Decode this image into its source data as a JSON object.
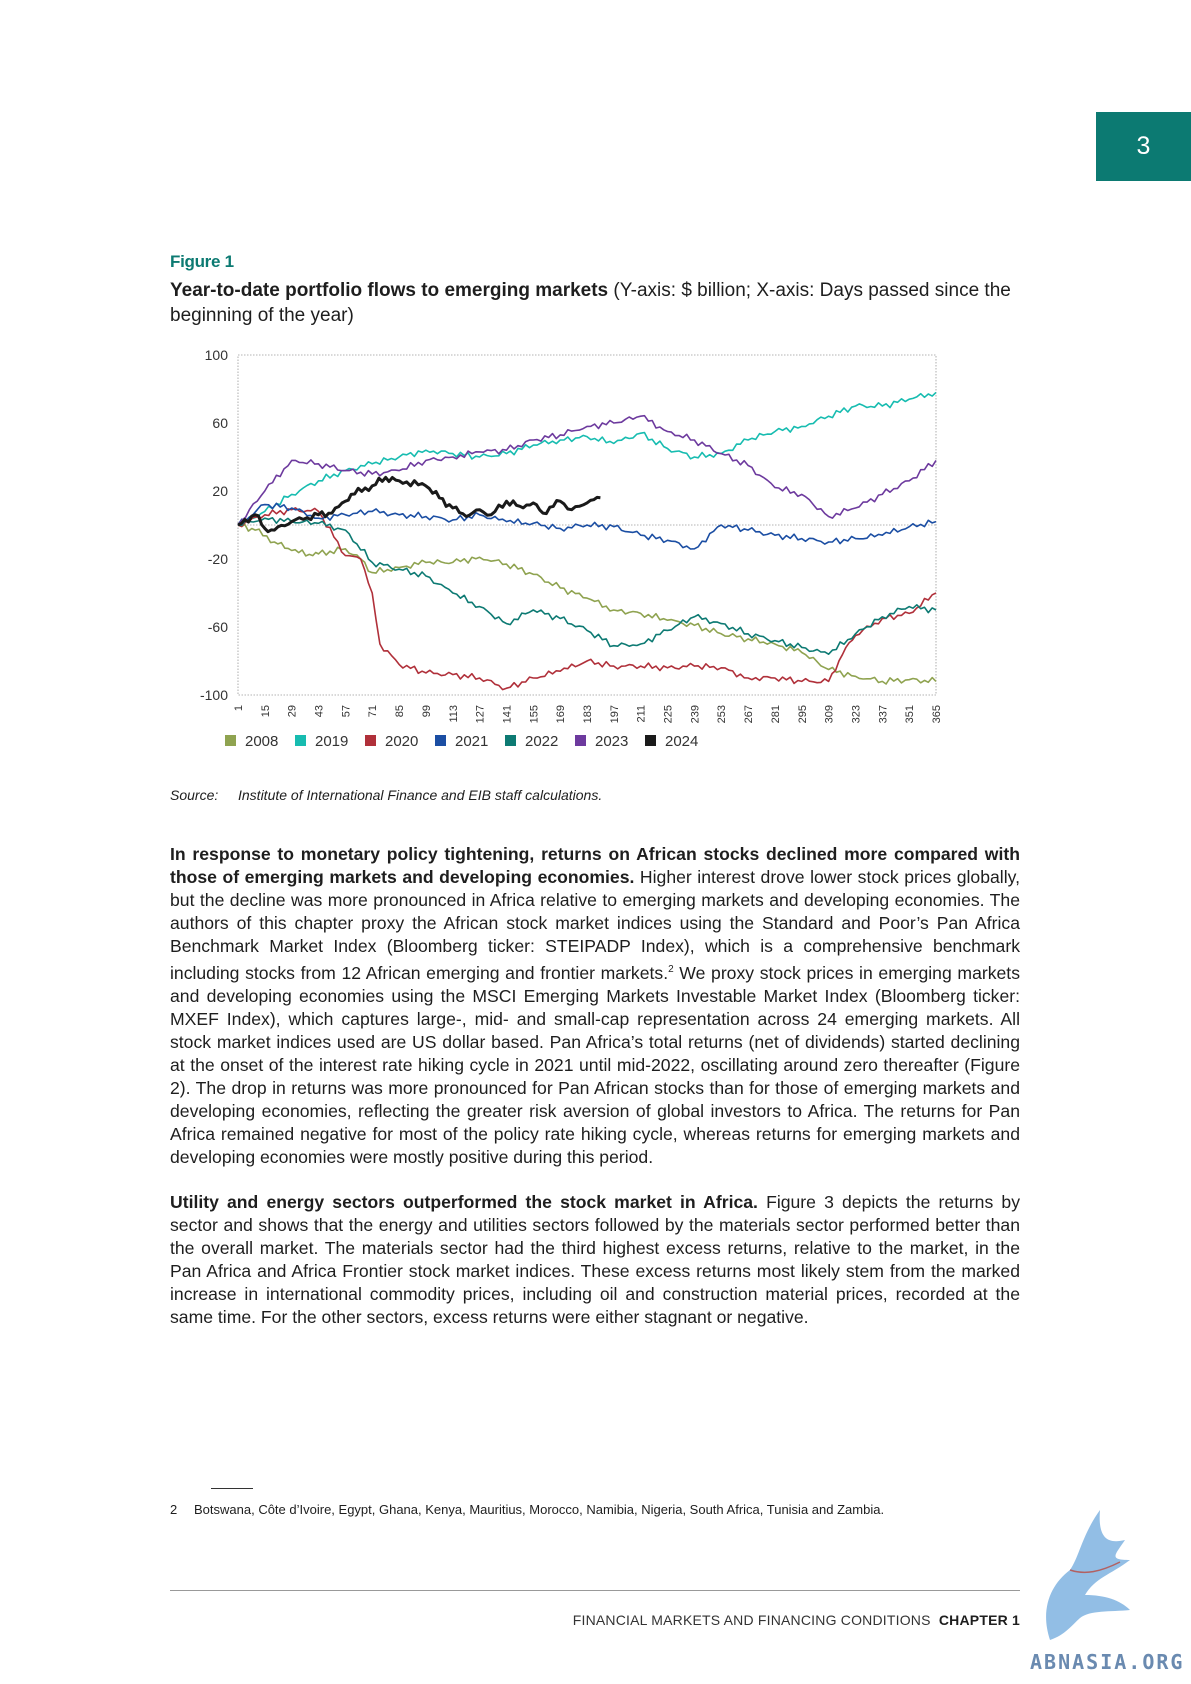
{
  "chapter_tab": "3",
  "figure": {
    "label": "Figure 1",
    "title_bold": "Year-to-date portfolio flows to emerging markets",
    "title_rest": " (Y-axis: $ billion; X-axis: Days passed since the beginning of the year)"
  },
  "source": {
    "label": "Source:",
    "text": "Institute of International Finance and EIB staff calculations."
  },
  "chart_data": {
    "type": "line",
    "title": "",
    "xlabel": "",
    "ylabel": "",
    "x_ticks": [
      1,
      15,
      29,
      43,
      57,
      71,
      85,
      99,
      113,
      127,
      141,
      155,
      169,
      183,
      197,
      211,
      225,
      239,
      253,
      267,
      281,
      295,
      309,
      323,
      337,
      351,
      365
    ],
    "y_ticks": [
      100,
      60,
      20,
      -20,
      -60,
      -100
    ],
    "xlim": [
      1,
      365
    ],
    "ylim": [
      -100,
      100
    ],
    "grid": false,
    "legend_position": "bottom",
    "series": [
      {
        "name": "2008",
        "color": "#8fa350",
        "x": [
          1,
          10,
          20,
          29,
          40,
          43,
          57,
          65,
          71,
          85,
          99,
          113,
          127,
          141,
          155,
          169,
          183,
          197,
          211,
          225,
          239,
          253,
          267,
          281,
          295,
          309,
          323,
          337,
          351,
          365
        ],
        "y": [
          0,
          -3,
          -10,
          -15,
          -18,
          -17,
          -14,
          -20,
          -28,
          -25,
          -22,
          -22,
          -19,
          -23,
          -29,
          -37,
          -43,
          -50,
          -52,
          -56,
          -59,
          -64,
          -67,
          -70,
          -75,
          -85,
          -89,
          -92,
          -91,
          -92
        ]
      },
      {
        "name": "2019",
        "color": "#17bcb0",
        "x": [
          1,
          15,
          29,
          43,
          57,
          71,
          85,
          99,
          113,
          127,
          141,
          155,
          169,
          183,
          197,
          211,
          225,
          239,
          253,
          267,
          281,
          295,
          309,
          323,
          337,
          351,
          365
        ],
        "y": [
          0,
          8,
          18,
          26,
          32,
          36,
          40,
          44,
          42,
          40,
          42,
          47,
          50,
          52,
          48,
          54,
          45,
          40,
          42,
          50,
          55,
          58,
          64,
          70,
          70,
          74,
          78
        ]
      },
      {
        "name": "2020",
        "color": "#b0303a",
        "x": [
          1,
          15,
          29,
          43,
          57,
          65,
          71,
          75,
          85,
          99,
          113,
          127,
          141,
          155,
          169,
          183,
          197,
          211,
          225,
          239,
          253,
          267,
          281,
          295,
          309,
          318,
          323,
          337,
          351,
          365
        ],
        "y": [
          0,
          6,
          9,
          8,
          -18,
          -20,
          -40,
          -70,
          -82,
          -87,
          -88,
          -90,
          -96,
          -90,
          -86,
          -80,
          -83,
          -83,
          -84,
          -83,
          -84,
          -90,
          -90,
          -92,
          -92,
          -72,
          -65,
          -55,
          -52,
          -40
        ]
      },
      {
        "name": "2021",
        "color": "#1b4ea3",
        "x": [
          1,
          15,
          29,
          43,
          57,
          71,
          85,
          99,
          113,
          127,
          141,
          155,
          169,
          183,
          197,
          211,
          225,
          239,
          253,
          267,
          281,
          295,
          309,
          323,
          337,
          351,
          365
        ],
        "y": [
          0,
          12,
          10,
          4,
          6,
          8,
          6,
          5,
          3,
          6,
          2,
          1,
          -2,
          0,
          -1,
          -6,
          -9,
          -14,
          0,
          -3,
          -6,
          -8,
          -10,
          -8,
          -6,
          -1,
          2
        ]
      },
      {
        "name": "2022",
        "color": "#0d7a73",
        "x": [
          1,
          15,
          29,
          43,
          57,
          71,
          85,
          99,
          113,
          127,
          141,
          155,
          169,
          183,
          197,
          211,
          225,
          239,
          253,
          267,
          281,
          295,
          309,
          323,
          337,
          351,
          365
        ],
        "y": [
          0,
          4,
          2,
          1,
          -3,
          -22,
          -26,
          -30,
          -40,
          -48,
          -58,
          -50,
          -55,
          -62,
          -71,
          -70,
          -62,
          -54,
          -58,
          -64,
          -68,
          -72,
          -76,
          -64,
          -54,
          -48,
          -50
        ]
      },
      {
        "name": "2023",
        "color": "#6d3a9e",
        "x": [
          1,
          15,
          29,
          43,
          57,
          71,
          85,
          99,
          113,
          127,
          141,
          155,
          169,
          183,
          197,
          211,
          225,
          239,
          253,
          267,
          281,
          295,
          309,
          323,
          337,
          351,
          365
        ],
        "y": [
          0,
          20,
          38,
          36,
          32,
          30,
          32,
          38,
          40,
          43,
          44,
          50,
          53,
          58,
          60,
          64,
          55,
          50,
          42,
          35,
          22,
          18,
          5,
          10,
          18,
          26,
          38
        ]
      },
      {
        "name": "2024",
        "color": "#1a1a1a",
        "x": [
          1,
          10,
          15,
          20,
          29,
          43,
          50,
          57,
          60,
          71,
          78,
          85,
          99,
          106,
          113,
          120,
          127,
          133,
          141,
          148,
          155,
          160,
          169,
          175,
          183,
          190
        ],
        "y": [
          0,
          6,
          -2,
          -3,
          2,
          6,
          7,
          14,
          18,
          23,
          28,
          26,
          23,
          16,
          10,
          5,
          9,
          6,
          14,
          11,
          13,
          7,
          14,
          9,
          13,
          16
        ]
      }
    ]
  },
  "body": {
    "p1_bold": "In response to monetary policy tightening, returns on African stocks declined more compared with those of emerging markets and developing economies.",
    "p1_text_a": " Higher interest drove lower stock prices globally, but the decline was more pronounced in Africa relative to emerging markets and developing economies. The authors of this chapter proxy the African stock market indices using the Standard and Poor’s Pan Africa Benchmark Market Index (Bloomberg ticker: STEIPADP Index), which is a comprehensive benchmark including stocks from 12 African emerging and frontier markets.",
    "p1_sup": "2",
    "p1_text_b": " We proxy stock prices in emerging markets and developing economies using the MSCI Emerging Markets Investable Market Index (Bloomberg ticker: MXEF Index), which captures large-, mid- and small-cap representation across 24 emerging markets. All stock market indices used are US dollar based. Pan Africa’s total returns (net of dividends) started declining at the onset of the interest rate hiking cycle in 2021 until mid-2022, oscillating around zero thereafter (Figure 2). The drop in returns was more pronounced for Pan African stocks than for those of emerging markets and developing economies, reflecting the greater risk aversion of global investors to Africa. The returns for Pan Africa remained negative for most of the policy rate hiking cycle, whereas returns for emerging markets and developing economies were mostly positive during this period.",
    "p2_bold": "Utility and energy sectors outperformed the stock market in Africa.",
    "p2_text": " Figure 3 depicts the returns by sector and shows that the energy and utilities sectors followed by the materials sector performed better than the overall market. The materials sector had the third highest excess returns, relative to the market, in the Pan Africa and Africa Frontier stock market indices. These excess returns most likely stem from the marked increase in international commodity prices, including oil and construction material prices, recorded at the same time. For the other sectors, excess returns were either stagnant or negative."
  },
  "footnote": {
    "number": "2",
    "text": "Botswana, Côte d’Ivoire, Egypt, Ghana, Kenya, Mauritius, Morocco, Namibia, Nigeria, South Africa, Tunisia and Zambia."
  },
  "footer": {
    "section": "FINANCIAL MARKETS AND FINANCING CONDITIONS",
    "chapter": "CHAPTER 1"
  },
  "watermark": "ABNASIA.ORG",
  "colors": {
    "accent": "#0c7a72"
  }
}
